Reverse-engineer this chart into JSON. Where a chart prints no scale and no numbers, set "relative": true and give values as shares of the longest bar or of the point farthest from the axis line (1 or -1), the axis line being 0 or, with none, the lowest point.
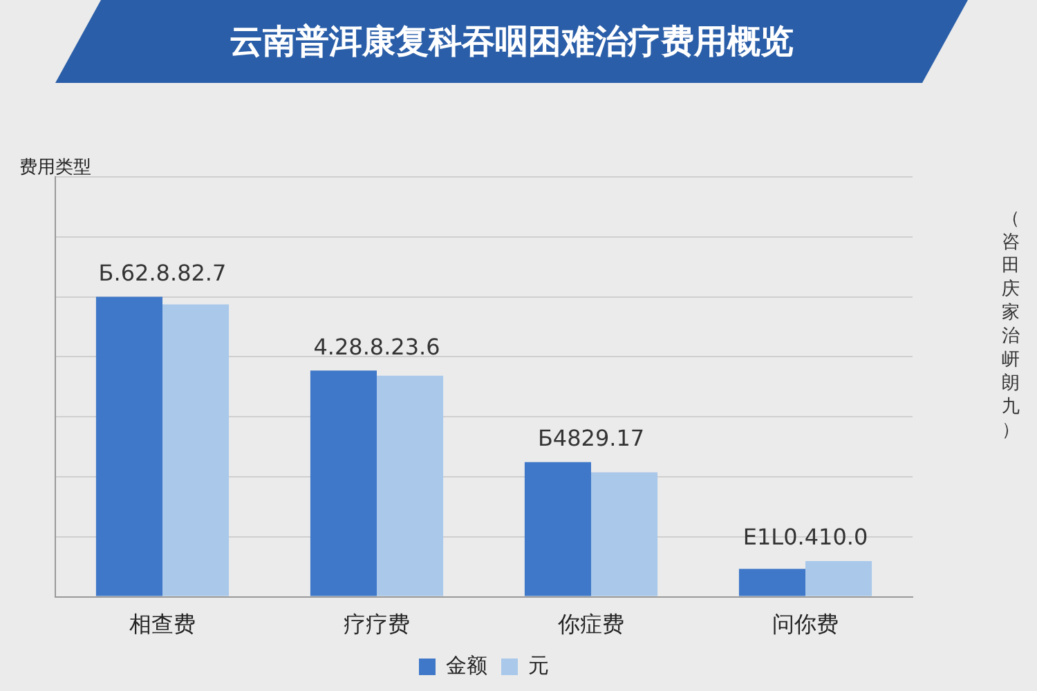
{
  "chart_data": {
    "type": "bar",
    "title": "云南普洱康复科吞咽困难治疗费用概览",
    "y2label": "（咨田庆家治岍朗九）",
    "categories": [
      "相查费",
      "疗疗费",
      "你症费",
      "问你费"
    ],
    "series": [
      {
        "name": "金额",
        "color": "#3f78c8",
        "values": [
          1,
          0.754,
          0.449,
          0.093
        ]
      },
      {
        "name": "元",
        "color": "#a9c8ea",
        "values": [
          0.975,
          0.737,
          0.415,
          0.119
        ]
      }
    ],
    "relative": true,
    "grid": "y",
    "legend": "bottom",
    "annotations": [
      "Б.62.8.82.7",
      "4.28.8.23.6",
      "Б4829.17",
      "E1L0.410.0",
      "费用类型"
    ]
  }
}
